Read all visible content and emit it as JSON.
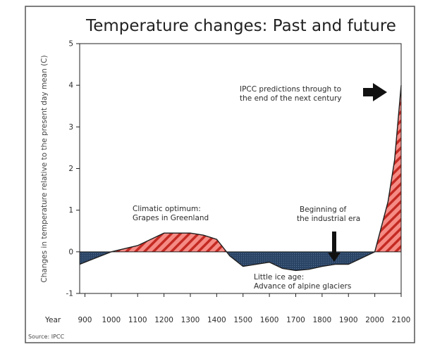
{
  "chart_data": {
    "type": "area",
    "title": "Temperature changes: Past and future",
    "ylabel": "Changes in temperature relative to the present day mean (C)",
    "xlabel": "Year",
    "source": "Source: IPCC",
    "xlim": [
      880,
      2100
    ],
    "ylim": [
      -1,
      5
    ],
    "xticks": [
      900,
      1000,
      1100,
      1200,
      1300,
      1400,
      1500,
      1600,
      1700,
      1800,
      1900,
      2000,
      2100
    ],
    "yticks": [
      -1,
      0,
      1,
      2,
      3,
      4,
      5
    ],
    "series": [
      {
        "x": [
          880,
          1000,
          1100,
          1150,
          1200,
          1300,
          1350,
          1400,
          1450,
          1500,
          1550,
          1600,
          1650,
          1700,
          1750,
          1800,
          1850,
          1900,
          1950,
          2000,
          2050,
          2075,
          2100
        ],
        "values": [
          -0.3,
          0.0,
          0.15,
          0.3,
          0.45,
          0.45,
          0.4,
          0.3,
          -0.1,
          -0.35,
          -0.3,
          -0.25,
          -0.4,
          -0.45,
          -0.42,
          -0.35,
          -0.3,
          -0.3,
          -0.15,
          0.0,
          1.2,
          2.2,
          4.0
        ]
      }
    ],
    "colors": {
      "warm_fill": "#f58b85",
      "warm_hatch": "#c42a22",
      "cool_fill": "#203a5a",
      "axis": "#222222"
    },
    "annotations": [
      {
        "label": "Climatic optimum:",
        "line2": "Grapes in Greenland"
      },
      {
        "label": "Beginning of",
        "line2": "the industrial era",
        "arrow": "down",
        "at_year": 1850
      },
      {
        "label": "Little ice age:",
        "line2": "Advance of alpine glaciers"
      },
      {
        "label": "IPCC predictions through to",
        "line2": "the end of the next century",
        "arrow": "right"
      }
    ]
  }
}
